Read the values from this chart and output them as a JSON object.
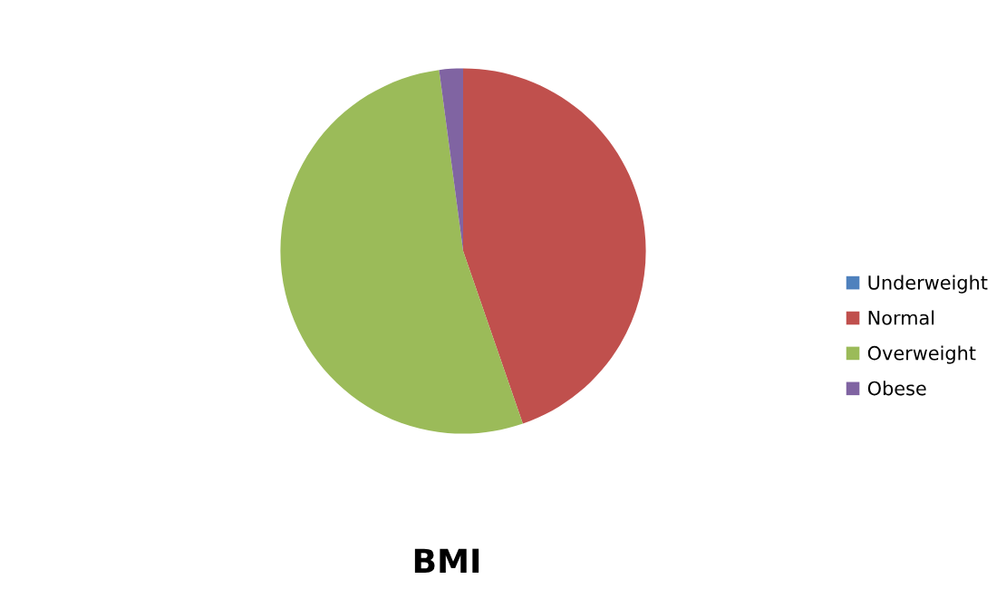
{
  "chart_data": {
    "type": "pie",
    "title": "BMI",
    "categories": [
      "Underweight",
      "Normal",
      "Overweight",
      "Obese"
    ],
    "values": [
      0,
      44.7,
      53.2,
      2.1
    ],
    "colors": [
      "#4f81bd",
      "#c0504d",
      "#9bbb59",
      "#8064a2"
    ],
    "legend": "right"
  }
}
